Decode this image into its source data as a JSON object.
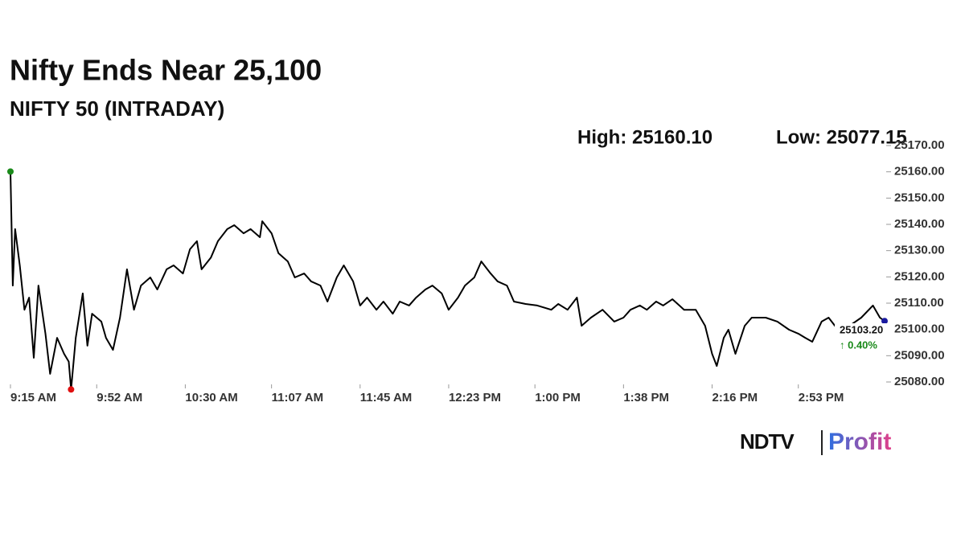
{
  "chart_data": {
    "type": "line",
    "title": "Nifty Ends Near 25,100",
    "subtitle": "NIFTY 50 (INTRADAY)",
    "high_label": "High: 25160.10",
    "low_label": "Low: 25077.15",
    "last_value_label": "25103.20",
    "change_label": "↑ 0.40%",
    "color": "#000000",
    "high_marker_color": "#1a8a1a",
    "low_marker_color": "#e01010",
    "last_marker_color": "#1a1aa0",
    "change_color": "#1a8a1a",
    "logo": {
      "brand": "NDTV",
      "product": "Profit"
    },
    "x": [
      "9:15 AM",
      "9:16 AM",
      "9:17 AM",
      "9:19 AM",
      "9:21 AM",
      "9:23 AM",
      "9:25 AM",
      "9:27 AM",
      "9:30 AM",
      "9:32 AM",
      "9:35 AM",
      "9:38 AM",
      "9:40 AM",
      "9:41 AM",
      "9:43 AM",
      "9:46 AM",
      "9:48 AM",
      "9:50 AM",
      "9:54 AM",
      "9:56 AM",
      "9:59 AM",
      "10:02 AM",
      "10:05 AM",
      "10:08 AM",
      "10:11 AM",
      "10:15 AM",
      "10:18 AM",
      "10:22 AM",
      "10:25 AM",
      "10:29 AM",
      "10:32 AM",
      "10:35 AM",
      "10:37 AM",
      "10:41 AM",
      "10:44 AM",
      "10:48 AM",
      "10:51 AM",
      "10:55 AM",
      "10:58 AM",
      "11:02 AM",
      "11:03 AM",
      "11:07 AM",
      "11:10 AM",
      "11:14 AM",
      "11:17 AM",
      "11:21 AM",
      "11:24 AM",
      "11:28 AM",
      "11:31 AM",
      "11:35 AM",
      "11:38 AM",
      "11:42 AM",
      "11:45 AM",
      "11:48 AM",
      "11:52 AM",
      "11:55 AM",
      "11:59 AM",
      "12:02 PM",
      "12:06 PM",
      "12:09 PM",
      "12:13 PM",
      "12:16 PM",
      "12:20 PM",
      "12:23 PM",
      "12:27 PM",
      "12:30 PM",
      "12:34 PM",
      "12:37 PM",
      "12:41 PM",
      "12:44 PM",
      "12:48 PM",
      "12:51 PM",
      "12:56 PM",
      "1:01 PM",
      "1:07 PM",
      "1:10 PM",
      "1:14 PM",
      "1:18 PM",
      "1:20 PM",
      "1:24 PM",
      "1:29 PM",
      "1:34 PM",
      "1:38 PM",
      "1:41 PM",
      "1:45 PM",
      "1:48 PM",
      "1:52 PM",
      "1:55 PM",
      "1:59 PM",
      "2:04 PM",
      "2:09 PM",
      "2:13 PM",
      "2:16 PM",
      "2:18 PM",
      "2:21 PM",
      "2:23 PM",
      "2:26 PM",
      "2:30 PM",
      "2:33 PM",
      "2:39 PM",
      "2:44 PM",
      "2:49 PM",
      "2:53 PM",
      "2:56 PM",
      "2:59 PM",
      "3:03 PM",
      "3:06 PM",
      "3:10 PM",
      "3:15 PM",
      "3:20 PM",
      "3:25 PM",
      "3:28 PM",
      "3:30 PM"
    ],
    "values": [
      25160.1,
      25116.7,
      25138.2,
      25124.4,
      25107.5,
      25112.1,
      25089.2,
      25116.7,
      25098.4,
      25083.1,
      25096.8,
      25090.7,
      25087.7,
      25077.15,
      25096.8,
      25113.7,
      25093.8,
      25106.0,
      25103.0,
      25096.8,
      25092.2,
      25104.5,
      25122.9,
      25107.5,
      25116.7,
      25119.8,
      25115.2,
      25122.9,
      25124.4,
      25121.3,
      25130.5,
      25133.6,
      25122.9,
      25127.4,
      25133.6,
      25138.2,
      25139.7,
      25136.6,
      25138.2,
      25135.1,
      25141.2,
      25136.6,
      25129.0,
      25125.9,
      25119.8,
      25121.3,
      25118.3,
      25116.7,
      25110.6,
      25119.8,
      25124.4,
      25118.3,
      25109.1,
      25112.1,
      25107.5,
      25110.6,
      25106.0,
      25110.6,
      25109.1,
      25112.1,
      25115.2,
      25116.7,
      25113.7,
      25107.5,
      25112.1,
      25116.7,
      25119.8,
      25125.9,
      25121.3,
      25118.3,
      25116.7,
      25110.6,
      25109.7,
      25109.1,
      25107.5,
      25109.7,
      25107.5,
      25112.1,
      25101.4,
      25104.5,
      25107.5,
      25103.0,
      25104.5,
      25107.5,
      25109.1,
      25107.5,
      25110.6,
      25109.1,
      25111.5,
      25107.5,
      25107.5,
      25101.4,
      25090.7,
      25086.1,
      25096.8,
      25099.9,
      25090.7,
      25101.4,
      25104.5,
      25104.5,
      25103.0,
      25099.9,
      25098.4,
      25096.8,
      25095.3,
      25103.0,
      25104.5,
      25099.9,
      25101.4,
      25104.5,
      25109.1,
      25104.5,
      25103.2
    ],
    "xlim": [
      "9:15 AM",
      "3:30 PM"
    ],
    "xticks": [
      "9:15 AM",
      "9:52 AM",
      "10:30 AM",
      "11:07 AM",
      "11:45 AM",
      "12:23 PM",
      "1:00 PM",
      "1:38 PM",
      "2:16 PM",
      "2:53 PM"
    ],
    "ylim": [
      25080,
      25170
    ],
    "yticks": [
      {
        "value": 25080,
        "label": "25080.00"
      },
      {
        "value": 25090,
        "label": "25090.00"
      },
      {
        "value": 25100,
        "label": "25100.00"
      },
      {
        "value": 25110,
        "label": "25110.00"
      },
      {
        "value": 25120,
        "label": "25120.00"
      },
      {
        "value": 25130,
        "label": "25130.00"
      },
      {
        "value": 25140,
        "label": "25140.00"
      },
      {
        "value": 25150,
        "label": "25150.00"
      },
      {
        "value": 25160,
        "label": "25160.00"
      },
      {
        "value": 25170,
        "label": "25170.00"
      }
    ]
  }
}
